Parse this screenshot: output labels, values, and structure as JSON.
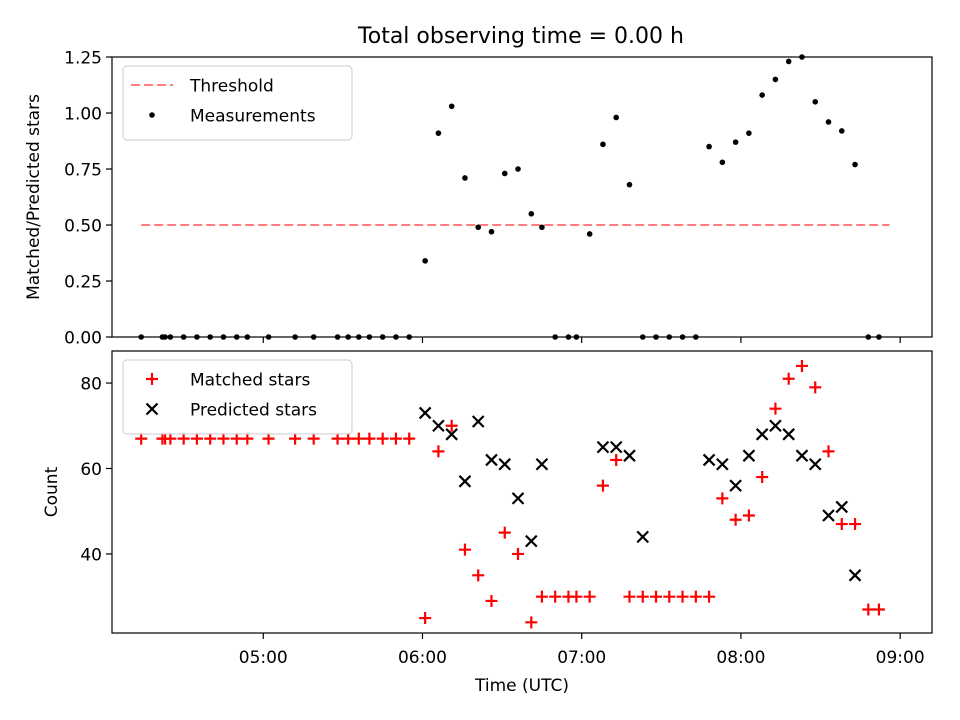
{
  "chart_data": [
    {
      "type": "scatter",
      "title": "Total observing time = 0.00 h",
      "xlabel": "",
      "ylabel": "Matched/Predicted stars",
      "xlim": [
        "04:03",
        "09:12"
      ],
      "ylim": [
        0,
        1.25
      ],
      "yticks": [
        "0.00",
        "0.25",
        "0.50",
        "0.75",
        "1.00",
        "1.25"
      ],
      "xticks_shown": false,
      "legend_position": "top-left",
      "threshold": {
        "name": "Threshold",
        "value": 0.5,
        "x_start": "04:14",
        "x_end": "08:56",
        "color": "#ff7f7f",
        "style": "dashed"
      },
      "series": [
        {
          "name": "Measurements",
          "color": "#000000",
          "marker": "dot",
          "x": [
            "04:14",
            "04:22",
            "04:23",
            "04:25",
            "04:30",
            "04:35",
            "04:40",
            "04:45",
            "04:50",
            "04:54",
            "05:02",
            "05:12",
            "05:19",
            "05:28",
            "05:32",
            "05:36",
            "05:40",
            "05:45",
            "05:50",
            "05:55",
            "06:01",
            "06:06",
            "06:11",
            "06:16",
            "06:21",
            "06:26",
            "06:31",
            "06:36",
            "06:41",
            "06:45",
            "06:50",
            "06:55",
            "06:58",
            "07:03",
            "07:08",
            "07:13",
            "07:18",
            "07:23",
            "07:28",
            "07:33",
            "07:38",
            "07:43",
            "07:48",
            "07:53",
            "07:58",
            "08:03",
            "08:08",
            "08:13",
            "08:18",
            "08:23",
            "08:28",
            "08:33",
            "08:38",
            "08:43",
            "08:48",
            "08:52"
          ],
          "y": [
            0,
            0,
            0,
            0,
            0,
            0,
            0,
            0,
            0,
            0,
            0,
            0,
            0,
            0,
            0,
            0,
            0,
            0,
            0,
            0,
            0.34,
            0.91,
            1.03,
            0.71,
            0.49,
            0.47,
            0.73,
            0.75,
            0.55,
            0.49,
            0,
            0,
            0,
            0.46,
            0.86,
            0.98,
            0.68,
            0,
            0,
            0,
            0,
            0,
            0.85,
            0.78,
            0.87,
            0.91,
            1.08,
            1.15,
            1.23,
            1.25,
            1.05,
            0.96,
            0.92,
            0.77,
            0,
            0
          ]
        }
      ]
    },
    {
      "type": "scatter",
      "title": "",
      "xlabel": "Time (UTC)",
      "ylabel": "Count",
      "xlim": [
        "04:03",
        "09:12"
      ],
      "ylim": [
        21.5,
        87.5
      ],
      "yticks": [
        "40",
        "60",
        "80"
      ],
      "xticks": [
        "05:00",
        "06:00",
        "07:00",
        "08:00",
        "09:00"
      ],
      "legend_position": "top-left",
      "series": [
        {
          "name": "Matched stars",
          "color": "#ff0000",
          "marker": "plus",
          "x": [
            "04:14",
            "04:22",
            "04:23",
            "04:25",
            "04:30",
            "04:35",
            "04:40",
            "04:45",
            "04:50",
            "04:54",
            "05:02",
            "05:12",
            "05:19",
            "05:28",
            "05:32",
            "05:36",
            "05:40",
            "05:45",
            "05:50",
            "05:55",
            "06:01",
            "06:06",
            "06:11",
            "06:16",
            "06:21",
            "06:26",
            "06:31",
            "06:36",
            "06:41",
            "06:45",
            "06:50",
            "06:55",
            "06:58",
            "07:03",
            "07:08",
            "07:13",
            "07:18",
            "07:23",
            "07:28",
            "07:33",
            "07:38",
            "07:43",
            "07:48",
            "07:53",
            "07:58",
            "08:03",
            "08:08",
            "08:13",
            "08:18",
            "08:23",
            "08:28",
            "08:33",
            "08:38",
            "08:43",
            "08:48",
            "08:52"
          ],
          "y": [
            67,
            67,
            67,
            67,
            67,
            67,
            67,
            67,
            67,
            67,
            67,
            67,
            67,
            67,
            67,
            67,
            67,
            67,
            67,
            67,
            25,
            64,
            70,
            41,
            35,
            29,
            45,
            40,
            24,
            30,
            30,
            30,
            30,
            30,
            56,
            62,
            30,
            30,
            30,
            30,
            30,
            30,
            30,
            53,
            48,
            49,
            58,
            74,
            81,
            84,
            79,
            64,
            47,
            47,
            27,
            27
          ]
        },
        {
          "name": "Predicted stars",
          "color": "#000000",
          "marker": "cross",
          "x": [
            "06:01",
            "06:06",
            "06:11",
            "06:16",
            "06:21",
            "06:26",
            "06:31",
            "06:36",
            "06:41",
            "06:45",
            "07:08",
            "07:13",
            "07:18",
            "07:23",
            "07:48",
            "07:53",
            "07:58",
            "08:03",
            "08:08",
            "08:13",
            "08:18",
            "08:23",
            "08:28",
            "08:33",
            "08:38",
            "08:43"
          ],
          "y": [
            73,
            70,
            68,
            57,
            71,
            62,
            61,
            53,
            43,
            61,
            65,
            65,
            63,
            44,
            62,
            61,
            56,
            63,
            68,
            70,
            68,
            63,
            61,
            49,
            51,
            35
          ]
        }
      ]
    }
  ]
}
